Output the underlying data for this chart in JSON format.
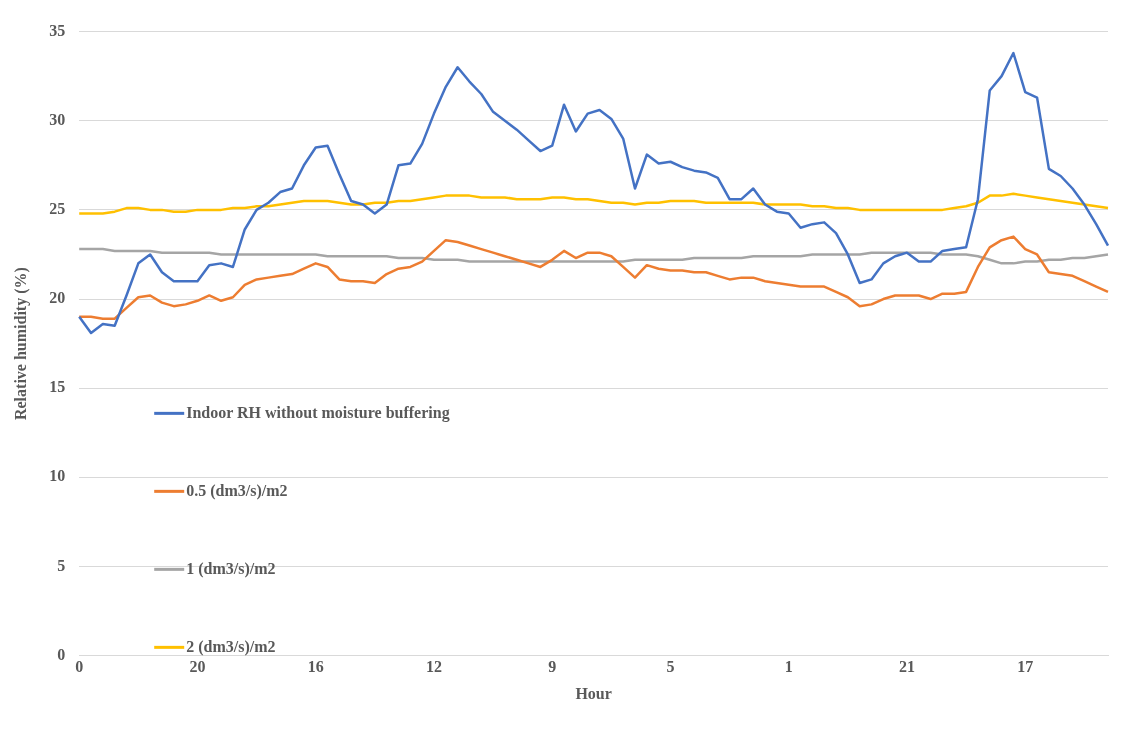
{
  "chart_data": {
    "type": "line",
    "xlabel": "Hour",
    "ylabel": "Relative humidity (%)",
    "ylim": [
      0,
      35
    ],
    "categories": [
      "0",
      null,
      null,
      null,
      null,
      null,
      null,
      null,
      null,
      null,
      "20",
      null,
      null,
      null,
      null,
      null,
      null,
      null,
      null,
      null,
      "16",
      null,
      null,
      null,
      null,
      null,
      null,
      null,
      null,
      null,
      "12",
      null,
      null,
      null,
      null,
      null,
      null,
      null,
      null,
      null,
      "9",
      null,
      null,
      null,
      null,
      null,
      null,
      null,
      null,
      null,
      "5",
      null,
      null,
      null,
      null,
      null,
      null,
      null,
      null,
      null,
      "1",
      null,
      null,
      null,
      null,
      null,
      null,
      null,
      null,
      null,
      "21",
      null,
      null,
      null,
      null,
      null,
      null,
      null,
      null,
      null,
      "17",
      null,
      null,
      null,
      null,
      null,
      null,
      null
    ],
    "yticks": [
      0,
      5,
      10,
      15,
      20,
      25,
      30,
      35
    ],
    "grid": "y",
    "legend": "bottom left",
    "marker": "none",
    "line_style": "solid",
    "series": [
      {
        "name": "Indoor RH without moisture buffering",
        "color": "#4472c4",
        "values": [
          19.0,
          18.1,
          18.6,
          18.5,
          20.2,
          22.0,
          22.5,
          21.5,
          21.0,
          21.0,
          21.0,
          21.9,
          22.0,
          21.8,
          23.9,
          25.0,
          25.4,
          26.0,
          26.2,
          27.5,
          28.5,
          28.6,
          27.0,
          25.5,
          25.3,
          24.8,
          25.3,
          27.5,
          27.6,
          28.7,
          30.4,
          31.9,
          33.0,
          32.2,
          31.5,
          30.5,
          30.0,
          29.5,
          28.9,
          28.3,
          28.6,
          30.9,
          29.4,
          30.4,
          30.6,
          30.1,
          29.0,
          26.2,
          28.1,
          27.6,
          27.7,
          27.4,
          27.2,
          27.1,
          26.8,
          25.6,
          25.6,
          26.2,
          25.3,
          24.9,
          24.8,
          24.0,
          24.2,
          24.3,
          23.7,
          22.5,
          20.9,
          21.1,
          22.0,
          22.4,
          22.6,
          22.1,
          22.1,
          22.7,
          22.8,
          22.9,
          25.6,
          31.7,
          32.5,
          33.8,
          31.6,
          31.3,
          27.3,
          26.9,
          26.2,
          25.3,
          24.2,
          23.0
        ]
      },
      {
        "name": "0.5 (dm3/s)/m2",
        "color": "#ed7d31",
        "values": [
          19.0,
          19.0,
          18.9,
          18.9,
          19.5,
          20.1,
          20.2,
          19.8,
          19.6,
          19.7,
          19.9,
          20.2,
          19.9,
          20.1,
          20.8,
          21.1,
          21.2,
          21.3,
          21.4,
          21.7,
          22.0,
          21.8,
          21.1,
          21.0,
          21.0,
          20.9,
          21.4,
          21.7,
          21.8,
          22.1,
          22.7,
          23.3,
          23.2,
          23.0,
          22.8,
          22.6,
          22.4,
          22.2,
          22.0,
          21.8,
          22.2,
          22.7,
          22.3,
          22.6,
          22.6,
          22.4,
          21.8,
          21.2,
          21.9,
          21.7,
          21.6,
          21.6,
          21.5,
          21.5,
          21.3,
          21.1,
          21.2,
          21.2,
          21.0,
          20.9,
          20.8,
          20.7,
          20.7,
          20.7,
          20.4,
          20.1,
          19.6,
          19.7,
          20.0,
          20.2,
          20.2,
          20.2,
          20.0,
          20.3,
          20.3,
          20.4,
          21.8,
          22.9,
          23.3,
          23.5,
          22.8,
          22.5,
          21.5,
          21.4,
          21.3,
          21.0,
          20.7,
          20.4
        ]
      },
      {
        "name": "1 (dm3/s)/m2",
        "color": "#a5a5a5",
        "values": [
          22.8,
          22.8,
          22.8,
          22.7,
          22.7,
          22.7,
          22.7,
          22.6,
          22.6,
          22.6,
          22.6,
          22.6,
          22.5,
          22.5,
          22.5,
          22.5,
          22.5,
          22.5,
          22.5,
          22.5,
          22.5,
          22.4,
          22.4,
          22.4,
          22.4,
          22.4,
          22.4,
          22.3,
          22.3,
          22.3,
          22.2,
          22.2,
          22.2,
          22.1,
          22.1,
          22.1,
          22.1,
          22.1,
          22.1,
          22.1,
          22.1,
          22.1,
          22.1,
          22.1,
          22.1,
          22.1,
          22.1,
          22.2,
          22.2,
          22.2,
          22.2,
          22.2,
          22.3,
          22.3,
          22.3,
          22.3,
          22.3,
          22.4,
          22.4,
          22.4,
          22.4,
          22.4,
          22.5,
          22.5,
          22.5,
          22.5,
          22.5,
          22.6,
          22.6,
          22.6,
          22.6,
          22.6,
          22.6,
          22.5,
          22.5,
          22.5,
          22.4,
          22.2,
          22.0,
          22.0,
          22.1,
          22.1,
          22.2,
          22.2,
          22.3,
          22.3,
          22.4,
          22.5
        ]
      },
      {
        "name": "2 (dm3/s)/m2",
        "color": "#ffc000",
        "values": [
          24.8,
          24.8,
          24.8,
          24.9,
          25.1,
          25.1,
          25.0,
          25.0,
          24.9,
          24.9,
          25.0,
          25.0,
          25.0,
          25.1,
          25.1,
          25.2,
          25.2,
          25.3,
          25.4,
          25.5,
          25.5,
          25.5,
          25.4,
          25.3,
          25.3,
          25.4,
          25.4,
          25.5,
          25.5,
          25.6,
          25.7,
          25.8,
          25.8,
          25.8,
          25.7,
          25.7,
          25.7,
          25.6,
          25.6,
          25.6,
          25.7,
          25.7,
          25.6,
          25.6,
          25.5,
          25.4,
          25.4,
          25.3,
          25.4,
          25.4,
          25.5,
          25.5,
          25.5,
          25.4,
          25.4,
          25.4,
          25.4,
          25.4,
          25.3,
          25.3,
          25.3,
          25.3,
          25.2,
          25.2,
          25.1,
          25.1,
          25.0,
          25.0,
          25.0,
          25.0,
          25.0,
          25.0,
          25.0,
          25.0,
          25.1,
          25.2,
          25.4,
          25.8,
          25.8,
          25.9,
          25.8,
          25.7,
          25.6,
          25.5,
          25.4,
          25.3,
          25.2,
          25.1
        ]
      }
    ]
  }
}
